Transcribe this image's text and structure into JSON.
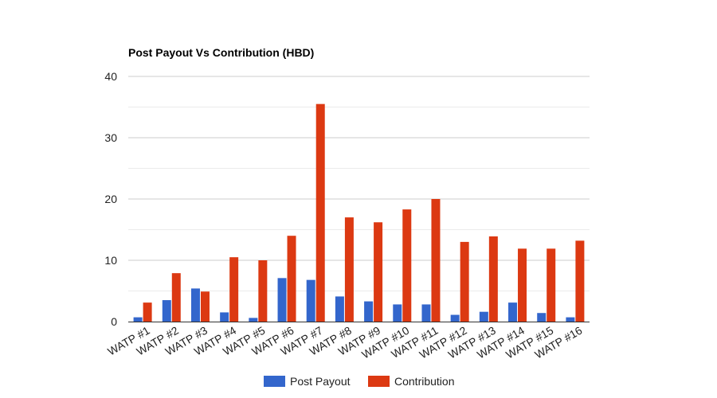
{
  "chart_data": {
    "type": "bar",
    "title": "Post Payout Vs Contribution (HBD)",
    "xlabel": "",
    "ylabel": "",
    "categories": [
      "WATP #1",
      "WATP #2",
      "WATP #3",
      "WATP #4",
      "WATP #5",
      "WATP #6",
      "WATP #7",
      "WATP #8",
      "WATP #9",
      "WATP #10",
      "WATP #11",
      "WATP #12",
      "WATP #13",
      "WATP #14",
      "WATP #15",
      "WATP #16"
    ],
    "series": [
      {
        "name": "Post Payout",
        "color": "#3366cc",
        "values": [
          0.7,
          3.5,
          5.4,
          1.5,
          0.6,
          7.1,
          6.8,
          4.1,
          3.3,
          2.8,
          2.8,
          1.1,
          1.6,
          3.1,
          1.4,
          0.7
        ]
      },
      {
        "name": "Contribution",
        "color": "#dc3912",
        "values": [
          3.1,
          7.9,
          4.9,
          10.5,
          10.0,
          14.0,
          35.5,
          17.0,
          16.2,
          18.3,
          20.0,
          13.0,
          13.9,
          11.9,
          11.9,
          13.2
        ]
      }
    ],
    "ylim": [
      0,
      40
    ],
    "yticks": [
      0,
      10,
      20,
      30,
      40
    ],
    "grid": true,
    "legend_position": "bottom",
    "colors": {
      "gridline": "#cccccc",
      "minor_gridline": "#ebebeb",
      "baseline": "#333333"
    }
  }
}
